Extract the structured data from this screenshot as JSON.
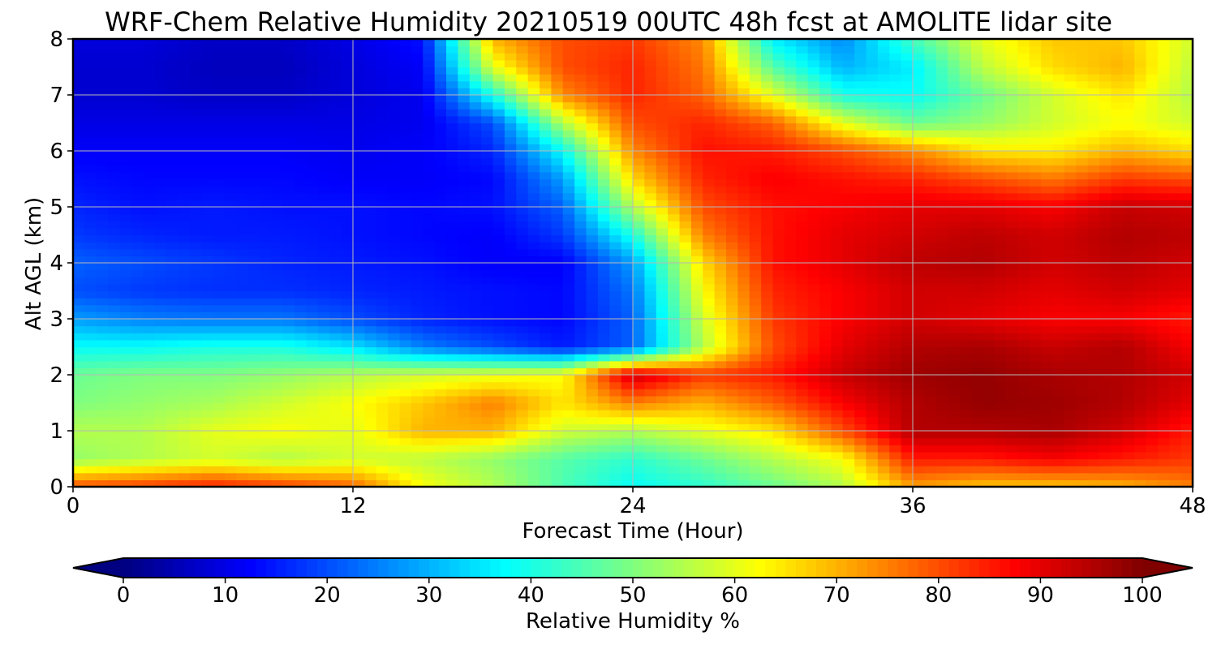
{
  "chart_data": {
    "type": "heatmap",
    "title": "WRF-Chem Relative Humidity 20210519 00UTC 48h fcst at AMOLITE lidar site",
    "xlabel": "Forecast Time (Hour)",
    "ylabel": "Alt AGL (km)",
    "xlim": [
      0,
      48
    ],
    "ylim": [
      0,
      8
    ],
    "xticks": [
      "0",
      "12",
      "24",
      "36",
      "48"
    ],
    "yticks": [
      "0",
      "1",
      "2",
      "3",
      "4",
      "5",
      "6",
      "7",
      "8"
    ],
    "grid": true,
    "x": [
      0,
      3,
      6,
      9,
      12,
      15,
      18,
      21,
      24,
      27,
      30,
      33,
      36,
      39,
      42,
      45,
      48
    ],
    "y": [
      0,
      0.5,
      1,
      1.5,
      2,
      2.5,
      3,
      3.5,
      4,
      4.5,
      5,
      5.5,
      6,
      6.5,
      7,
      7.5,
      8
    ],
    "z": [
      [
        80,
        82,
        85,
        82,
        78,
        62,
        55,
        45,
        38,
        42,
        48,
        55,
        72,
        68,
        68,
        70,
        75
      ],
      [
        52,
        55,
        58,
        55,
        58,
        56,
        52,
        46,
        42,
        48,
        55,
        62,
        85,
        85,
        88,
        85,
        82
      ],
      [
        55,
        55,
        60,
        62,
        60,
        70,
        70,
        58,
        55,
        60,
        65,
        80,
        95,
        95,
        96,
        92,
        85
      ],
      [
        50,
        52,
        54,
        58,
        62,
        68,
        75,
        65,
        75,
        70,
        78,
        88,
        95,
        98,
        97,
        95,
        90
      ],
      [
        48,
        50,
        50,
        52,
        55,
        58,
        60,
        62,
        93,
        82,
        85,
        93,
        97,
        98,
        96,
        95,
        92
      ],
      [
        38,
        38,
        40,
        40,
        35,
        25,
        20,
        15,
        22,
        55,
        80,
        90,
        95,
        96,
        93,
        95,
        88
      ],
      [
        28,
        25,
        24,
        24,
        20,
        16,
        14,
        13,
        22,
        58,
        82,
        88,
        92,
        90,
        88,
        88,
        85
      ],
      [
        20,
        18,
        17,
        17,
        16,
        15,
        14,
        13,
        24,
        62,
        84,
        88,
        92,
        92,
        90,
        92,
        90
      ],
      [
        22,
        20,
        18,
        16,
        15,
        14,
        12,
        12,
        28,
        66,
        86,
        90,
        94,
        95,
        92,
        94,
        92
      ],
      [
        18,
        16,
        15,
        15,
        14,
        13,
        12,
        18,
        40,
        75,
        86,
        90,
        92,
        94,
        92,
        95,
        94
      ],
      [
        16,
        14,
        15,
        14,
        14,
        13,
        14,
        22,
        55,
        80,
        86,
        88,
        90,
        90,
        88,
        93,
        92
      ],
      [
        14,
        13,
        13,
        13,
        12,
        12,
        13,
        28,
        66,
        84,
        88,
        86,
        84,
        80,
        76,
        82,
        80
      ],
      [
        12,
        12,
        12,
        12,
        11,
        12,
        16,
        38,
        74,
        86,
        85,
        80,
        74,
        65,
        64,
        70,
        66
      ],
      [
        10,
        10,
        10,
        10,
        10,
        11,
        20,
        55,
        80,
        84,
        78,
        60,
        48,
        52,
        58,
        62,
        58
      ],
      [
        8,
        8,
        7,
        7,
        9,
        11,
        40,
        74,
        84,
        78,
        60,
        40,
        38,
        48,
        58,
        65,
        55
      ],
      [
        8,
        8,
        6,
        6,
        9,
        12,
        60,
        80,
        84,
        76,
        46,
        30,
        36,
        56,
        66,
        70,
        56
      ],
      [
        9,
        9,
        7,
        7,
        10,
        14,
        70,
        80,
        82,
        74,
        36,
        26,
        44,
        60,
        68,
        68,
        58
      ]
    ],
    "colorbar": {
      "label": "Relative Humidity %",
      "ticks": [
        "0",
        "10",
        "20",
        "30",
        "40",
        "50",
        "60",
        "70",
        "80",
        "90",
        "100"
      ],
      "range": [
        0,
        100
      ],
      "colormap": "jet",
      "extend": "both"
    }
  }
}
